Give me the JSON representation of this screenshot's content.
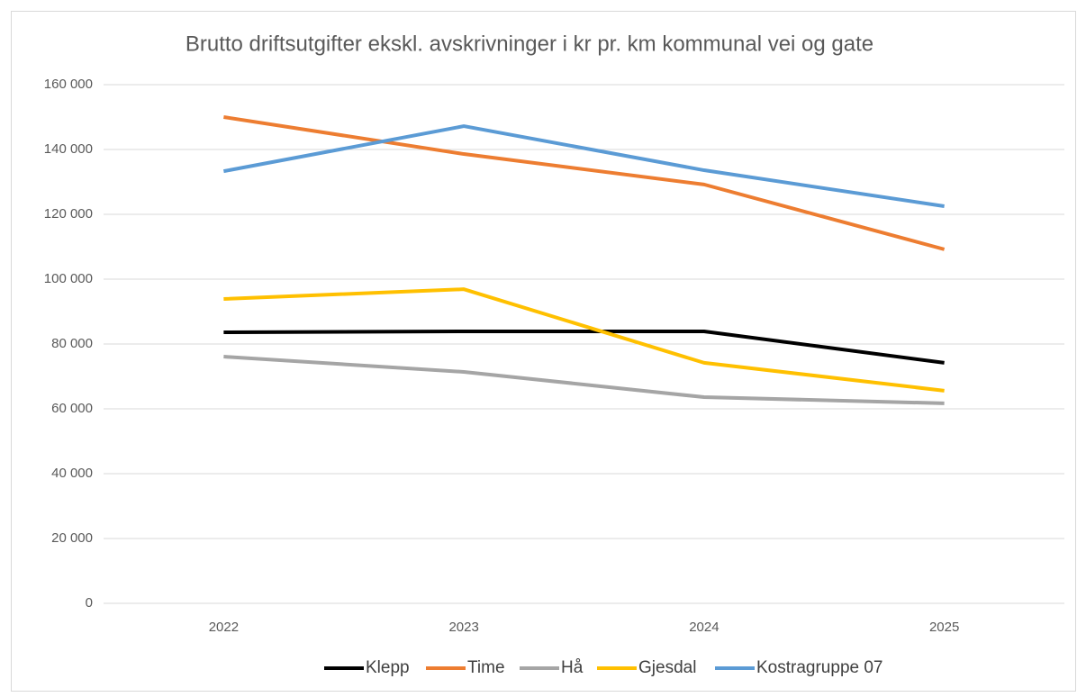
{
  "chart_data": {
    "type": "line",
    "title": "Brutto driftsutgifter ekskl. avskrivninger i kr pr. km kommunal vei og gate",
    "categories": [
      "2022",
      "2023",
      "2024",
      "2025"
    ],
    "series": [
      {
        "name": "Klepp",
        "color": "#000000",
        "values": [
          83600,
          83900,
          83900,
          74200
        ]
      },
      {
        "name": "Time",
        "color": "#ed7d31",
        "values": [
          150000,
          138600,
          129200,
          109200
        ]
      },
      {
        "name": "Hå",
        "color": "#a5a5a5",
        "values": [
          76100,
          71400,
          63600,
          61700
        ]
      },
      {
        "name": "Gjesdal",
        "color": "#ffc000",
        "values": [
          93900,
          96900,
          74200,
          65600
        ]
      },
      {
        "name": "Kostragruppe 07",
        "color": "#5b9bd5",
        "values": [
          133300,
          147200,
          133600,
          122500
        ]
      }
    ],
    "ylim": [
      0,
      160000
    ],
    "yticks": [
      0,
      {
        "value": 20000,
        "label": "20 000"
      },
      {
        "value": 40000,
        "label": "40 000"
      },
      {
        "value": 60000,
        "label": "60 000"
      },
      {
        "value": 80000,
        "label": "80 000"
      },
      {
        "value": 100000,
        "label": "100 000"
      },
      {
        "value": 120000,
        "label": "120 000"
      },
      {
        "value": 140000,
        "label": "140 000"
      },
      {
        "value": 160000,
        "label": "160 000"
      }
    ],
    "grid": true,
    "legend": "bottom"
  }
}
